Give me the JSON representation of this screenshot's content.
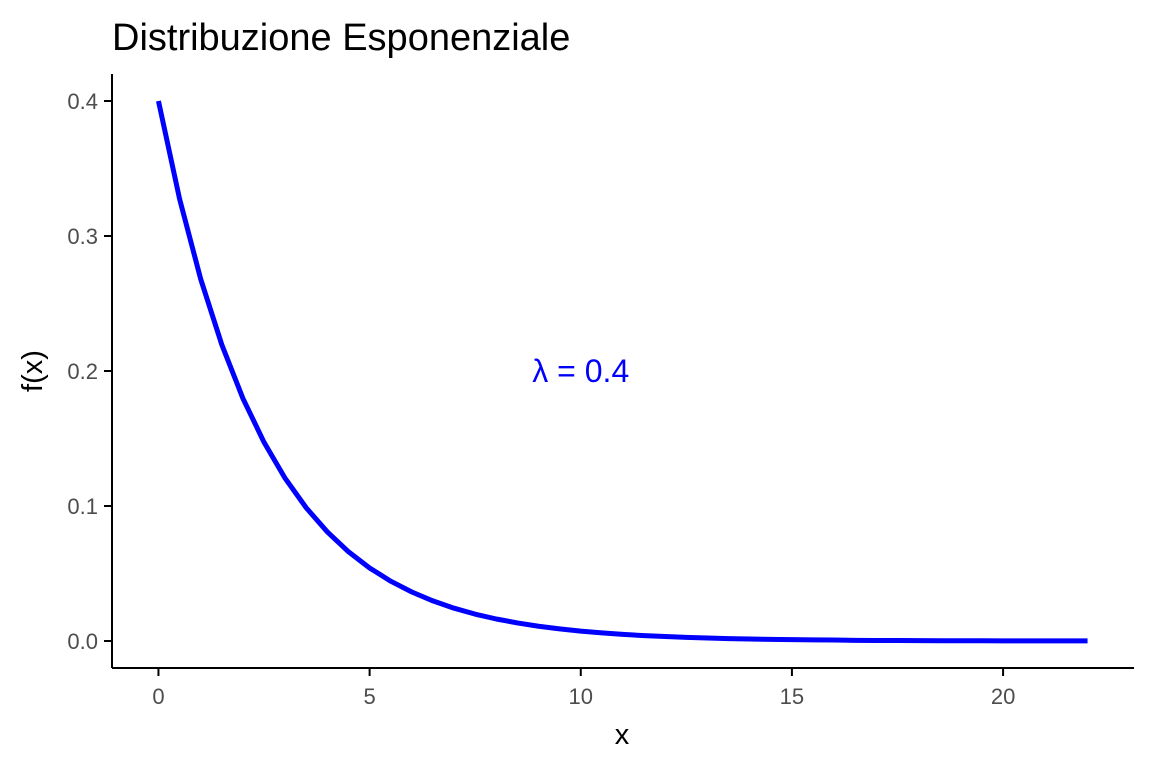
{
  "chart_data": {
    "type": "line",
    "title": "Distribuzione Esponenziale",
    "xlabel": "x",
    "ylabel": "f(x)",
    "xlim": [
      -1.1,
      23.1
    ],
    "ylim": [
      -0.02,
      0.42
    ],
    "grid": false,
    "x_ticks": [
      0,
      5,
      10,
      15,
      20
    ],
    "x_tick_labels": [
      "0",
      "5",
      "10",
      "15",
      "20"
    ],
    "y_ticks": [
      0.0,
      0.1,
      0.2,
      0.3,
      0.4
    ],
    "y_tick_labels": [
      "0.0",
      "0.1",
      "0.2",
      "0.3",
      "0.4"
    ],
    "series": [
      {
        "color": "#0000ff",
        "x": [
          0,
          0.5,
          1,
          1.5,
          2,
          2.5,
          3,
          3.5,
          4,
          4.5,
          5,
          5.5,
          6,
          6.5,
          7,
          7.5,
          8,
          8.5,
          9,
          9.5,
          10,
          10.5,
          11,
          11.5,
          12,
          12.5,
          13,
          13.5,
          14,
          14.5,
          15,
          15.5,
          16,
          16.5,
          17,
          17.5,
          18,
          18.5,
          19,
          19.5,
          20,
          20.5,
          21,
          21.5,
          22
        ],
        "y": [
          0.4,
          0.3275,
          0.2681,
          0.2195,
          0.1797,
          0.1472,
          0.1205,
          0.0986,
          0.0808,
          0.0661,
          0.0541,
          0.0443,
          0.0363,
          0.0297,
          0.0243,
          0.0199,
          0.0163,
          0.0134,
          0.0109,
          0.009,
          0.0073,
          0.006,
          0.0049,
          0.004,
          0.0033,
          0.0027,
          0.0022,
          0.0018,
          0.0015,
          0.0012,
          0.001,
          0.0008,
          0.0007,
          0.0005,
          0.0004,
          0.0004,
          0.0003,
          0.0002,
          0.0002,
          0.0002,
          0.0001,
          0.0001,
          0.0001,
          0.0001,
          0.0001
        ]
      }
    ],
    "annotations": [
      {
        "text": "λ = 0.4",
        "x": 10,
        "y": 0.2,
        "color": "#0000ff"
      }
    ]
  }
}
